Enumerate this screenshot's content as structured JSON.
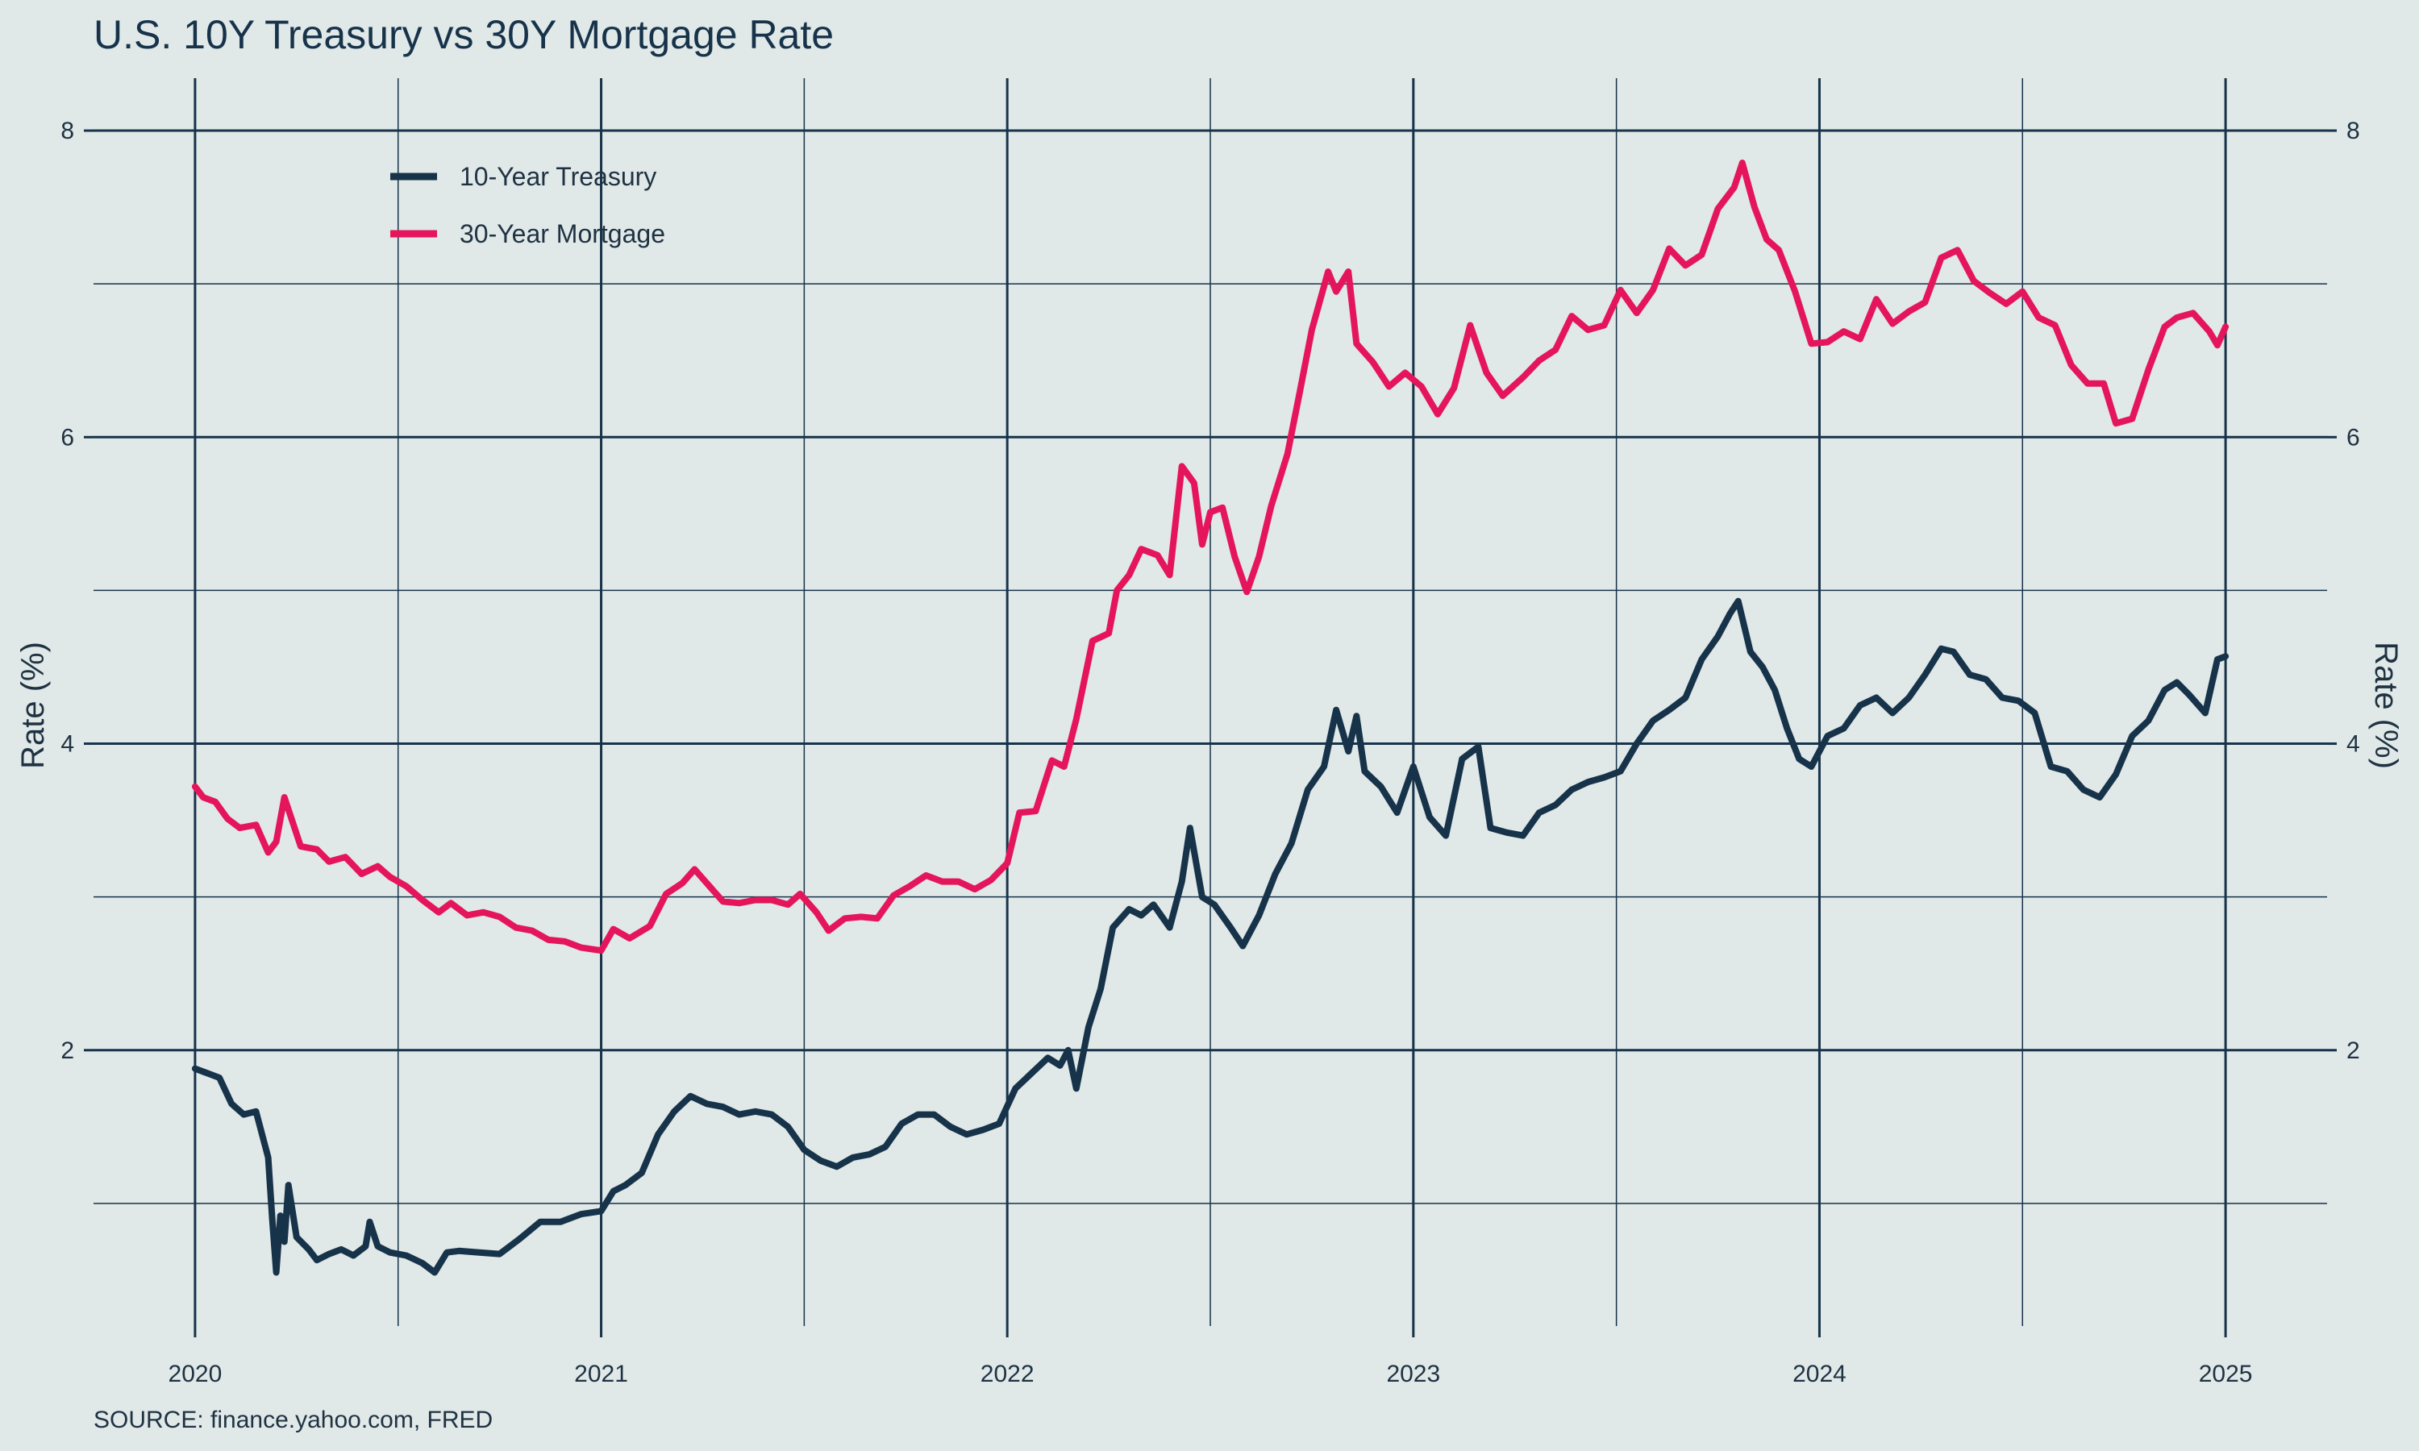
{
  "chart_data": {
    "type": "line",
    "title": "U.S. 10Y Treasury vs 30Y Mortgage Rate",
    "ylabel_left": "Rate (%)",
    "ylabel_right": "Rate (%)",
    "xlabel": "",
    "source": "SOURCE: finance.yahoo.com, FRED",
    "x_range": [
      2019.75,
      2025.25
    ],
    "ylim": [
      0.2,
      8.3
    ],
    "y_major_ticks": [
      2,
      4,
      6,
      8
    ],
    "y_major_tick_labels": [
      "2",
      "4",
      "6",
      "8"
    ],
    "y_minor_gridlines": [
      1,
      3,
      5,
      7
    ],
    "x_major_ticks": [
      2020,
      2021,
      2022,
      2023,
      2024,
      2025
    ],
    "x_tick_labels": [
      "2020",
      "2021",
      "2022",
      "2023",
      "2024",
      "2025"
    ],
    "x_minor_gridlines": [
      2020.5,
      2021.5,
      2022.5,
      2023.5,
      2024.5
    ],
    "legend": {
      "position": "top-left",
      "entries": [
        "10-Year Treasury",
        "30-Year Mortgage"
      ]
    },
    "colors": {
      "treasury": "#17334a",
      "mortgage": "#e5155b",
      "grid": "#17334a",
      "background": "#e0e8e8"
    },
    "series": [
      {
        "name": "10-Year Treasury",
        "color": "#17334a",
        "points": [
          [
            2020.0,
            1.88
          ],
          [
            2020.03,
            1.85
          ],
          [
            2020.06,
            1.82
          ],
          [
            2020.09,
            1.65
          ],
          [
            2020.12,
            1.58
          ],
          [
            2020.15,
            1.6
          ],
          [
            2020.18,
            1.3
          ],
          [
            2020.19,
            0.9
          ],
          [
            2020.2,
            0.55
          ],
          [
            2020.21,
            0.92
          ],
          [
            2020.22,
            0.75
          ],
          [
            2020.23,
            1.12
          ],
          [
            2020.25,
            0.78
          ],
          [
            2020.28,
            0.7
          ],
          [
            2020.3,
            0.63
          ],
          [
            2020.33,
            0.67
          ],
          [
            2020.36,
            0.7
          ],
          [
            2020.39,
            0.66
          ],
          [
            2020.42,
            0.72
          ],
          [
            2020.43,
            0.88
          ],
          [
            2020.45,
            0.72
          ],
          [
            2020.48,
            0.68
          ],
          [
            2020.52,
            0.66
          ],
          [
            2020.56,
            0.61
          ],
          [
            2020.59,
            0.55
          ],
          [
            2020.62,
            0.68
          ],
          [
            2020.65,
            0.69
          ],
          [
            2020.7,
            0.68
          ],
          [
            2020.75,
            0.67
          ],
          [
            2020.8,
            0.77
          ],
          [
            2020.85,
            0.88
          ],
          [
            2020.9,
            0.88
          ],
          [
            2020.95,
            0.93
          ],
          [
            2021.0,
            0.95
          ],
          [
            2021.03,
            1.08
          ],
          [
            2021.06,
            1.12
          ],
          [
            2021.1,
            1.2
          ],
          [
            2021.14,
            1.45
          ],
          [
            2021.18,
            1.6
          ],
          [
            2021.22,
            1.7
          ],
          [
            2021.26,
            1.65
          ],
          [
            2021.3,
            1.63
          ],
          [
            2021.34,
            1.58
          ],
          [
            2021.38,
            1.6
          ],
          [
            2021.42,
            1.58
          ],
          [
            2021.46,
            1.5
          ],
          [
            2021.5,
            1.35
          ],
          [
            2021.54,
            1.28
          ],
          [
            2021.58,
            1.24
          ],
          [
            2021.62,
            1.3
          ],
          [
            2021.66,
            1.32
          ],
          [
            2021.7,
            1.37
          ],
          [
            2021.74,
            1.52
          ],
          [
            2021.78,
            1.58
          ],
          [
            2021.82,
            1.58
          ],
          [
            2021.86,
            1.5
          ],
          [
            2021.9,
            1.45
          ],
          [
            2021.94,
            1.48
          ],
          [
            2021.98,
            1.52
          ],
          [
            2022.02,
            1.75
          ],
          [
            2022.06,
            1.85
          ],
          [
            2022.1,
            1.95
          ],
          [
            2022.13,
            1.9
          ],
          [
            2022.15,
            2.0
          ],
          [
            2022.17,
            1.75
          ],
          [
            2022.2,
            2.15
          ],
          [
            2022.23,
            2.4
          ],
          [
            2022.26,
            2.8
          ],
          [
            2022.3,
            2.92
          ],
          [
            2022.33,
            2.88
          ],
          [
            2022.36,
            2.95
          ],
          [
            2022.4,
            2.8
          ],
          [
            2022.43,
            3.1
          ],
          [
            2022.45,
            3.45
          ],
          [
            2022.48,
            3.0
          ],
          [
            2022.51,
            2.95
          ],
          [
            2022.55,
            2.8
          ],
          [
            2022.58,
            2.68
          ],
          [
            2022.62,
            2.88
          ],
          [
            2022.66,
            3.15
          ],
          [
            2022.7,
            3.35
          ],
          [
            2022.74,
            3.7
          ],
          [
            2022.78,
            3.85
          ],
          [
            2022.81,
            4.22
          ],
          [
            2022.84,
            3.95
          ],
          [
            2022.86,
            4.18
          ],
          [
            2022.88,
            3.82
          ],
          [
            2022.92,
            3.72
          ],
          [
            2022.96,
            3.55
          ],
          [
            2023.0,
            3.85
          ],
          [
            2023.04,
            3.52
          ],
          [
            2023.08,
            3.4
          ],
          [
            2023.12,
            3.9
          ],
          [
            2023.16,
            3.98
          ],
          [
            2023.19,
            3.45
          ],
          [
            2023.23,
            3.42
          ],
          [
            2023.27,
            3.4
          ],
          [
            2023.31,
            3.55
          ],
          [
            2023.35,
            3.6
          ],
          [
            2023.39,
            3.7
          ],
          [
            2023.43,
            3.75
          ],
          [
            2023.47,
            3.78
          ],
          [
            2023.51,
            3.82
          ],
          [
            2023.55,
            4.0
          ],
          [
            2023.59,
            4.15
          ],
          [
            2023.63,
            4.22
          ],
          [
            2023.67,
            4.3
          ],
          [
            2023.71,
            4.55
          ],
          [
            2023.75,
            4.7
          ],
          [
            2023.78,
            4.85
          ],
          [
            2023.8,
            4.93
          ],
          [
            2023.83,
            4.6
          ],
          [
            2023.86,
            4.5
          ],
          [
            2023.89,
            4.35
          ],
          [
            2023.92,
            4.1
          ],
          [
            2023.95,
            3.9
          ],
          [
            2023.98,
            3.85
          ],
          [
            2024.02,
            4.05
          ],
          [
            2024.06,
            4.1
          ],
          [
            2024.1,
            4.25
          ],
          [
            2024.14,
            4.3
          ],
          [
            2024.18,
            4.2
          ],
          [
            2024.22,
            4.3
          ],
          [
            2024.26,
            4.45
          ],
          [
            2024.3,
            4.62
          ],
          [
            2024.33,
            4.6
          ],
          [
            2024.37,
            4.45
          ],
          [
            2024.41,
            4.42
          ],
          [
            2024.45,
            4.3
          ],
          [
            2024.49,
            4.28
          ],
          [
            2024.53,
            4.2
          ],
          [
            2024.57,
            3.85
          ],
          [
            2024.61,
            3.82
          ],
          [
            2024.65,
            3.7
          ],
          [
            2024.69,
            3.65
          ],
          [
            2024.73,
            3.8
          ],
          [
            2024.77,
            4.05
          ],
          [
            2024.81,
            4.15
          ],
          [
            2024.85,
            4.35
          ],
          [
            2024.88,
            4.4
          ],
          [
            2024.91,
            4.32
          ],
          [
            2024.95,
            4.2
          ],
          [
            2024.98,
            4.55
          ],
          [
            2025.0,
            4.57
          ]
        ]
      },
      {
        "name": "30-Year Mortgage",
        "color": "#e5155b",
        "points": [
          [
            2020.0,
            3.72
          ],
          [
            2020.02,
            3.65
          ],
          [
            2020.05,
            3.62
          ],
          [
            2020.08,
            3.51
          ],
          [
            2020.11,
            3.45
          ],
          [
            2020.15,
            3.47
          ],
          [
            2020.18,
            3.29
          ],
          [
            2020.2,
            3.36
          ],
          [
            2020.22,
            3.65
          ],
          [
            2020.26,
            3.33
          ],
          [
            2020.3,
            3.31
          ],
          [
            2020.33,
            3.23
          ],
          [
            2020.37,
            3.26
          ],
          [
            2020.41,
            3.15
          ],
          [
            2020.45,
            3.2
          ],
          [
            2020.48,
            3.13
          ],
          [
            2020.52,
            3.07
          ],
          [
            2020.56,
            2.98
          ],
          [
            2020.6,
            2.9
          ],
          [
            2020.63,
            2.96
          ],
          [
            2020.67,
            2.88
          ],
          [
            2020.71,
            2.9
          ],
          [
            2020.75,
            2.87
          ],
          [
            2020.79,
            2.8
          ],
          [
            2020.83,
            2.78
          ],
          [
            2020.87,
            2.72
          ],
          [
            2020.91,
            2.71
          ],
          [
            2020.95,
            2.67
          ],
          [
            2021.0,
            2.65
          ],
          [
            2021.03,
            2.79
          ],
          [
            2021.07,
            2.73
          ],
          [
            2021.12,
            2.81
          ],
          [
            2021.16,
            3.02
          ],
          [
            2021.2,
            3.09
          ],
          [
            2021.23,
            3.18
          ],
          [
            2021.27,
            3.06
          ],
          [
            2021.3,
            2.97
          ],
          [
            2021.34,
            2.96
          ],
          [
            2021.38,
            2.98
          ],
          [
            2021.42,
            2.98
          ],
          [
            2021.46,
            2.95
          ],
          [
            2021.49,
            3.02
          ],
          [
            2021.53,
            2.9
          ],
          [
            2021.56,
            2.78
          ],
          [
            2021.6,
            2.86
          ],
          [
            2021.64,
            2.87
          ],
          [
            2021.68,
            2.86
          ],
          [
            2021.72,
            3.01
          ],
          [
            2021.76,
            3.07
          ],
          [
            2021.8,
            3.14
          ],
          [
            2021.84,
            3.1
          ],
          [
            2021.88,
            3.1
          ],
          [
            2021.92,
            3.05
          ],
          [
            2021.96,
            3.11
          ],
          [
            2022.0,
            3.22
          ],
          [
            2022.03,
            3.55
          ],
          [
            2022.07,
            3.56
          ],
          [
            2022.11,
            3.89
          ],
          [
            2022.14,
            3.85
          ],
          [
            2022.17,
            4.16
          ],
          [
            2022.21,
            4.67
          ],
          [
            2022.25,
            4.72
          ],
          [
            2022.27,
            5.0
          ],
          [
            2022.3,
            5.1
          ],
          [
            2022.33,
            5.27
          ],
          [
            2022.37,
            5.23
          ],
          [
            2022.4,
            5.1
          ],
          [
            2022.43,
            5.81
          ],
          [
            2022.46,
            5.7
          ],
          [
            2022.48,
            5.3
          ],
          [
            2022.5,
            5.51
          ],
          [
            2022.53,
            5.54
          ],
          [
            2022.56,
            5.22
          ],
          [
            2022.59,
            4.99
          ],
          [
            2022.62,
            5.22
          ],
          [
            2022.65,
            5.55
          ],
          [
            2022.69,
            5.89
          ],
          [
            2022.72,
            6.29
          ],
          [
            2022.75,
            6.7
          ],
          [
            2022.79,
            7.08
          ],
          [
            2022.81,
            6.95
          ],
          [
            2022.84,
            7.08
          ],
          [
            2022.86,
            6.61
          ],
          [
            2022.9,
            6.49
          ],
          [
            2022.94,
            6.33
          ],
          [
            2022.98,
            6.42
          ],
          [
            2023.02,
            6.33
          ],
          [
            2023.06,
            6.15
          ],
          [
            2023.1,
            6.32
          ],
          [
            2023.14,
            6.73
          ],
          [
            2023.18,
            6.42
          ],
          [
            2023.22,
            6.27
          ],
          [
            2023.27,
            6.39
          ],
          [
            2023.31,
            6.5
          ],
          [
            2023.35,
            6.57
          ],
          [
            2023.39,
            6.79
          ],
          [
            2023.43,
            6.7
          ],
          [
            2023.47,
            6.73
          ],
          [
            2023.51,
            6.96
          ],
          [
            2023.55,
            6.81
          ],
          [
            2023.59,
            6.96
          ],
          [
            2023.63,
            7.23
          ],
          [
            2023.67,
            7.12
          ],
          [
            2023.71,
            7.19
          ],
          [
            2023.75,
            7.49
          ],
          [
            2023.79,
            7.63
          ],
          [
            2023.81,
            7.79
          ],
          [
            2023.84,
            7.5
          ],
          [
            2023.87,
            7.29
          ],
          [
            2023.9,
            7.22
          ],
          [
            2023.94,
            6.95
          ],
          [
            2023.98,
            6.61
          ],
          [
            2024.02,
            6.62
          ],
          [
            2024.06,
            6.69
          ],
          [
            2024.1,
            6.64
          ],
          [
            2024.14,
            6.9
          ],
          [
            2024.18,
            6.74
          ],
          [
            2024.22,
            6.82
          ],
          [
            2024.26,
            6.88
          ],
          [
            2024.3,
            7.17
          ],
          [
            2024.34,
            7.22
          ],
          [
            2024.38,
            7.02
          ],
          [
            2024.42,
            6.94
          ],
          [
            2024.46,
            6.87
          ],
          [
            2024.5,
            6.95
          ],
          [
            2024.54,
            6.78
          ],
          [
            2024.58,
            6.73
          ],
          [
            2024.62,
            6.47
          ],
          [
            2024.66,
            6.35
          ],
          [
            2024.7,
            6.35
          ],
          [
            2024.73,
            6.09
          ],
          [
            2024.77,
            6.12
          ],
          [
            2024.81,
            6.44
          ],
          [
            2024.85,
            6.72
          ],
          [
            2024.88,
            6.78
          ],
          [
            2024.92,
            6.81
          ],
          [
            2024.96,
            6.69
          ],
          [
            2024.98,
            6.6
          ],
          [
            2025.0,
            6.72
          ]
        ]
      }
    ]
  }
}
